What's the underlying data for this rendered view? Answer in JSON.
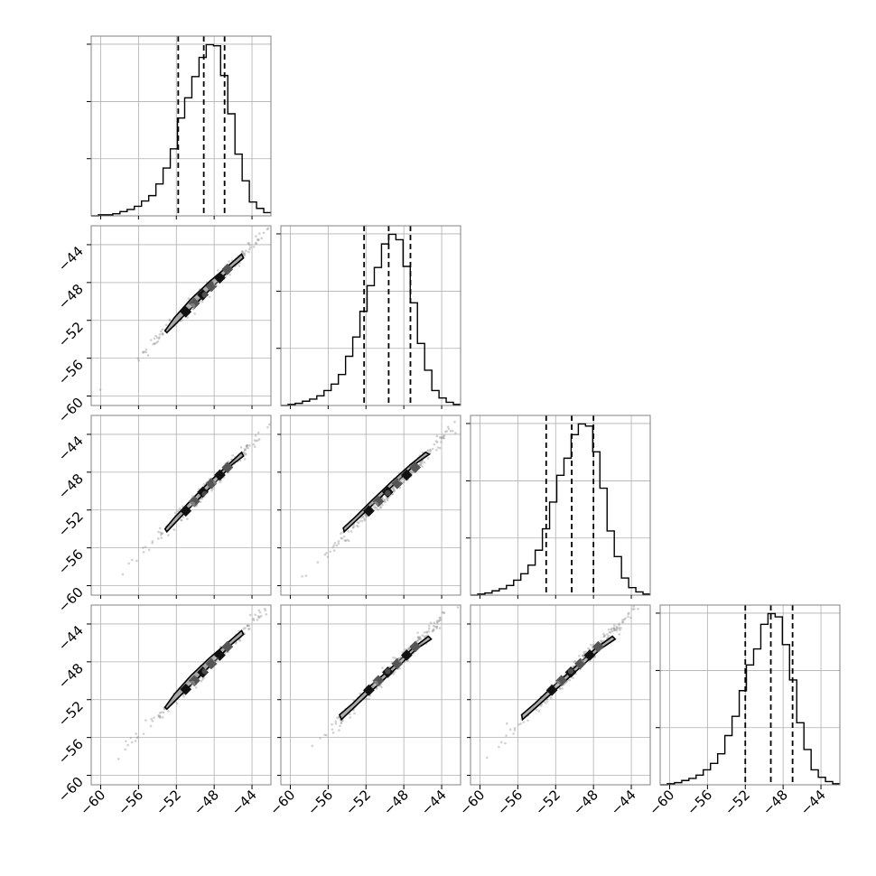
{
  "chart_data": {
    "type": "corner",
    "n_params": 4,
    "axis_range": [
      -61,
      -42
    ],
    "tick_values": [
      -60,
      -56,
      -52,
      -48,
      -44
    ],
    "tick_labels": [
      "−60",
      "−56",
      "−52",
      "−48",
      "−44"
    ],
    "grid": true,
    "colors": {
      "line": "#000000",
      "grid": "#b0b0b0",
      "frame": "#808080",
      "contour_fill": "#a0a0a0",
      "sample_points": "#9a9a9a"
    },
    "diagonal_histograms": [
      {
        "bin_edges": [
          -61,
          -60.24,
          -59.48,
          -58.72,
          -57.96,
          -57.2,
          -56.44,
          -55.68,
          -54.92,
          -54.16,
          -53.4,
          -52.64,
          -51.88,
          -51.12,
          -50.36,
          -49.6,
          -48.84,
          -48.08,
          -47.32,
          -46.56,
          -45.8,
          -45.04,
          -44.28,
          -43.52,
          -42.76,
          -42
        ],
        "counts": [
          0,
          1,
          1,
          2,
          4,
          6,
          9,
          14,
          19,
          30,
          45,
          63,
          92,
          111,
          131,
          149,
          161,
          160,
          132,
          96,
          58,
          33,
          13,
          7,
          3
        ],
        "quantiles": [
          -51.8,
          -49.1,
          -46.9
        ]
      },
      {
        "bin_edges": [
          -61,
          -60.24,
          -59.48,
          -58.72,
          -57.96,
          -57.2,
          -56.44,
          -55.68,
          -54.92,
          -54.16,
          -53.4,
          -52.64,
          -51.88,
          -51.12,
          -50.36,
          -49.6,
          -48.84,
          -48.08,
          -47.32,
          -46.56,
          -45.8,
          -45.04,
          -44.28,
          -43.52,
          -42.76,
          -42
        ],
        "counts": [
          0,
          1,
          2,
          4,
          6,
          9,
          14,
          20,
          29,
          46,
          64,
          88,
          112,
          129,
          151,
          160,
          155,
          130,
          96,
          58,
          33,
          14,
          7,
          3,
          1
        ],
        "quantiles": [
          -52.2,
          -49.6,
          -47.3
        ]
      },
      {
        "bin_edges": [
          -61,
          -60.24,
          -59.48,
          -58.72,
          -57.96,
          -57.2,
          -56.44,
          -55.68,
          -54.92,
          -54.16,
          -53.4,
          -52.64,
          -51.88,
          -51.12,
          -50.36,
          -49.6,
          -48.84,
          -48.08,
          -47.32,
          -46.56,
          -45.8,
          -45.04,
          -44.28,
          -43.52,
          -42.76,
          -42
        ],
        "counts": [
          0,
          1,
          2,
          4,
          6,
          9,
          14,
          20,
          28,
          42,
          62,
          87,
          112,
          128,
          150,
          160,
          158,
          134,
          100,
          60,
          36,
          16,
          7,
          3,
          1
        ],
        "quantiles": [
          -53.0,
          -50.3,
          -48.0
        ]
      },
      {
        "bin_edges": [
          -61,
          -60.24,
          -59.48,
          -58.72,
          -57.96,
          -57.2,
          -56.44,
          -55.68,
          -54.92,
          -54.16,
          -53.4,
          -52.64,
          -51.88,
          -51.12,
          -50.36,
          -49.6,
          -48.84,
          -48.08,
          -47.32,
          -46.56,
          -45.8,
          -45.04,
          -44.28,
          -43.52,
          -42.76,
          -42
        ],
        "counts": [
          0,
          1,
          2,
          4,
          6,
          9,
          14,
          20,
          29,
          46,
          64,
          88,
          112,
          127,
          150,
          160,
          157,
          131,
          98,
          58,
          33,
          14,
          7,
          3,
          1
        ],
        "quantiles": [
          -52.0,
          -49.3,
          -47.0
        ]
      }
    ],
    "pairs": [
      {
        "row": 1,
        "col": 0,
        "contour": [
          [
            -53.0,
            -53.3
          ],
          [
            -51.5,
            -51.8
          ],
          [
            -49.6,
            -49.9
          ],
          [
            -47.8,
            -48.1
          ],
          [
            -46.1,
            -46.4
          ],
          [
            -44.9,
            -45.4
          ],
          [
            -45.1,
            -45.0
          ],
          [
            -46.6,
            -46.3
          ],
          [
            -48.5,
            -47.9
          ],
          [
            -50.5,
            -49.8
          ],
          [
            -52.2,
            -51.7
          ],
          [
            -53.2,
            -53.1
          ]
        ],
        "core": [
          [
            -51.0,
            -51.1
          ],
          [
            -50.1,
            -50.2
          ],
          [
            -49.2,
            -49.3
          ],
          [
            -48.3,
            -48.4
          ],
          [
            -47.4,
            -47.5
          ],
          [
            -46.6,
            -46.6
          ]
        ],
        "dots": [
          [
            -50.3,
            -50.5
          ],
          [
            -49.0,
            -49.3
          ],
          [
            -47.8,
            -48.1
          ]
        ]
      },
      {
        "row": 2,
        "col": 0,
        "contour": [
          [
            -53.0,
            -54.3
          ],
          [
            -51.5,
            -52.7
          ],
          [
            -49.6,
            -50.8
          ],
          [
            -47.8,
            -49.0
          ],
          [
            -46.1,
            -47.2
          ],
          [
            -44.9,
            -46.3
          ],
          [
            -45.1,
            -45.9
          ],
          [
            -46.6,
            -47.3
          ],
          [
            -48.5,
            -49.0
          ],
          [
            -50.5,
            -51.0
          ],
          [
            -52.2,
            -52.8
          ],
          [
            -53.2,
            -54.0
          ]
        ],
        "core": [
          [
            -51.0,
            -52.1
          ],
          [
            -50.1,
            -51.1
          ],
          [
            -49.2,
            -50.1
          ],
          [
            -48.3,
            -49.2
          ],
          [
            -47.4,
            -48.3
          ],
          [
            -46.6,
            -47.5
          ]
        ],
        "dots": [
          [
            -50.3,
            -51.4
          ],
          [
            -49.0,
            -50.3
          ],
          [
            -47.8,
            -49.0
          ]
        ]
      },
      {
        "row": 2,
        "col": 1,
        "contour": [
          [
            -54.3,
            -54.3
          ],
          [
            -52.6,
            -52.7
          ],
          [
            -50.5,
            -50.7
          ],
          [
            -48.5,
            -48.8
          ],
          [
            -46.6,
            -47.0
          ],
          [
            -45.3,
            -46.1
          ],
          [
            -45.7,
            -45.9
          ],
          [
            -47.3,
            -47.2
          ],
          [
            -49.3,
            -49.0
          ],
          [
            -51.4,
            -51.0
          ],
          [
            -53.1,
            -52.7
          ],
          [
            -54.4,
            -53.9
          ]
        ],
        "core": [
          [
            -51.7,
            -52.1
          ],
          [
            -50.7,
            -51.1
          ],
          [
            -49.7,
            -50.1
          ],
          [
            -48.7,
            -49.2
          ],
          [
            -47.7,
            -48.3
          ],
          [
            -46.8,
            -47.5
          ]
        ],
        "dots": [
          [
            -51.0,
            -51.4
          ],
          [
            -49.7,
            -50.2
          ],
          [
            -48.3,
            -48.8
          ]
        ]
      },
      {
        "row": 3,
        "col": 0,
        "contour": [
          [
            -53.0,
            -53.0
          ],
          [
            -51.5,
            -51.5
          ],
          [
            -49.6,
            -49.6
          ],
          [
            -47.8,
            -47.8
          ],
          [
            -46.1,
            -46.1
          ],
          [
            -44.9,
            -45.1
          ],
          [
            -45.1,
            -44.7
          ],
          [
            -46.6,
            -46.0
          ],
          [
            -48.5,
            -47.6
          ],
          [
            -50.5,
            -49.5
          ],
          [
            -52.2,
            -51.4
          ],
          [
            -53.2,
            -52.8
          ]
        ],
        "core": [
          [
            -51.0,
            -50.9
          ],
          [
            -50.1,
            -50.0
          ],
          [
            -49.2,
            -49.1
          ],
          [
            -48.3,
            -48.2
          ],
          [
            -47.4,
            -47.3
          ],
          [
            -46.6,
            -46.4
          ]
        ],
        "dots": [
          [
            -50.3,
            -50.3
          ],
          [
            -49.0,
            -49.0
          ],
          [
            -47.8,
            -47.8
          ]
        ]
      },
      {
        "row": 3,
        "col": 1,
        "contour": [
          [
            -54.6,
            -54.1
          ],
          [
            -52.9,
            -52.5
          ],
          [
            -50.7,
            -50.4
          ],
          [
            -48.6,
            -48.5
          ],
          [
            -46.6,
            -46.6
          ],
          [
            -45.1,
            -45.6
          ],
          [
            -45.4,
            -45.3
          ],
          [
            -47.1,
            -46.6
          ],
          [
            -49.3,
            -48.6
          ],
          [
            -51.6,
            -50.6
          ],
          [
            -53.4,
            -52.4
          ],
          [
            -54.8,
            -53.6
          ]
        ],
        "core": [
          [
            -51.7,
            -51.0
          ],
          [
            -50.7,
            -50.0
          ],
          [
            -49.7,
            -49.1
          ],
          [
            -48.7,
            -48.2
          ],
          [
            -47.7,
            -47.3
          ],
          [
            -46.8,
            -46.4
          ]
        ],
        "dots": [
          [
            -51.0,
            -50.3
          ],
          [
            -49.7,
            -49.0
          ],
          [
            -48.3,
            -47.8
          ]
        ]
      },
      {
        "row": 3,
        "col": 2,
        "contour": [
          [
            -55.5,
            -54.1
          ],
          [
            -53.7,
            -52.5
          ],
          [
            -51.4,
            -50.4
          ],
          [
            -49.3,
            -48.5
          ],
          [
            -47.2,
            -46.6
          ],
          [
            -45.7,
            -45.6
          ],
          [
            -46.0,
            -45.3
          ],
          [
            -47.8,
            -46.6
          ],
          [
            -50.0,
            -48.6
          ],
          [
            -52.3,
            -50.6
          ],
          [
            -54.2,
            -52.4
          ],
          [
            -55.6,
            -53.6
          ]
        ],
        "core": [
          [
            -52.4,
            -51.0
          ],
          [
            -51.4,
            -50.0
          ],
          [
            -50.4,
            -49.1
          ],
          [
            -49.4,
            -48.2
          ],
          [
            -48.4,
            -47.3
          ],
          [
            -47.5,
            -46.4
          ]
        ],
        "dots": [
          [
            -51.8,
            -50.3
          ],
          [
            -50.4,
            -49.0
          ],
          [
            -49.0,
            -47.8
          ]
        ]
      }
    ]
  }
}
